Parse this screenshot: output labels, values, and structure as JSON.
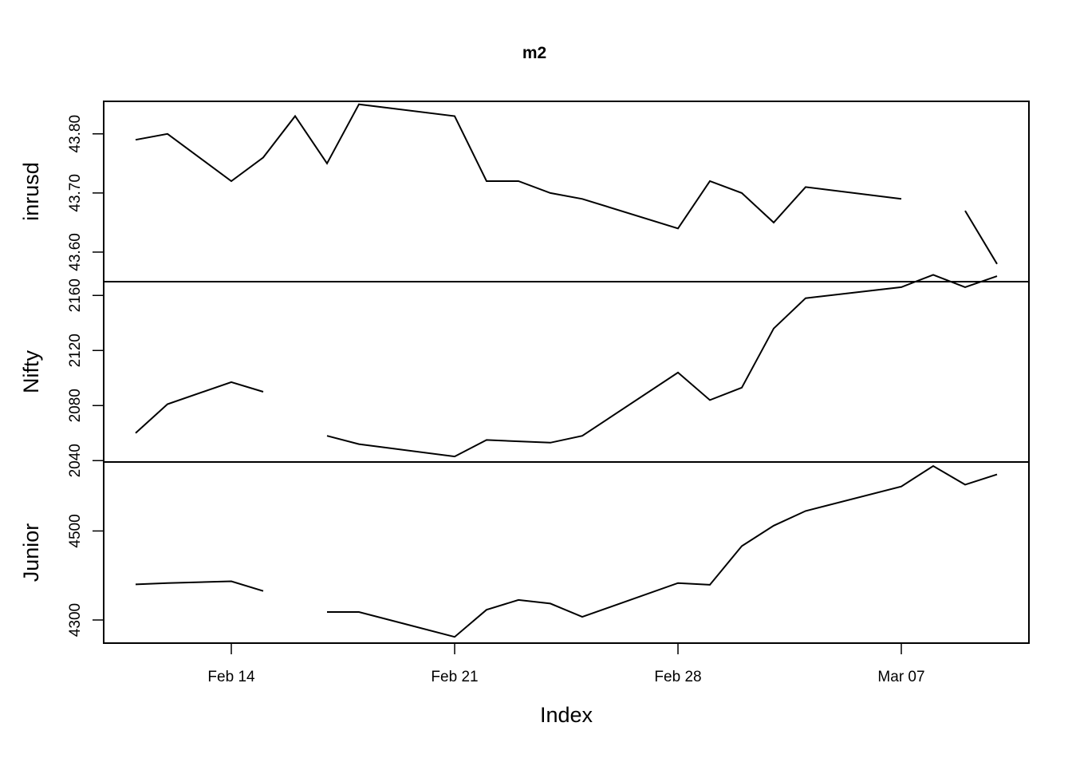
{
  "chart_data": {
    "type": "line",
    "title": "m2",
    "xlabel": "Index",
    "x_axis_kind": "date",
    "x_range": [
      "2005-02-10",
      "2005-03-11"
    ],
    "x_ticks": [
      {
        "date": "2005-02-14",
        "label": "Feb 14"
      },
      {
        "date": "2005-02-21",
        "label": "Feb 21"
      },
      {
        "date": "2005-02-28",
        "label": "Feb 28"
      },
      {
        "date": "2005-03-07",
        "label": "Mar 07"
      }
    ],
    "x": [
      "2005-02-11",
      "2005-02-12",
      "2005-02-14",
      "2005-02-15",
      "2005-02-16",
      "2005-02-17",
      "2005-02-18",
      "2005-02-21",
      "2005-02-22",
      "2005-02-23",
      "2005-02-24",
      "2005-02-25",
      "2005-02-28",
      "2005-03-01",
      "2005-03-02",
      "2005-03-03",
      "2005-03-04",
      "2005-03-07",
      "2005-03-08",
      "2005-03-09",
      "2005-03-10"
    ],
    "series": [
      {
        "name": "inrusd",
        "ylim": [
          43.55,
          43.855
        ],
        "y_ticks": [
          43.6,
          43.7,
          43.8
        ],
        "y_tick_labels": [
          "43.60",
          "43.70",
          "43.80"
        ],
        "values": [
          43.79,
          43.8,
          43.72,
          43.76,
          43.83,
          43.75,
          43.85,
          43.83,
          43.72,
          43.72,
          43.7,
          43.69,
          43.64,
          43.72,
          43.7,
          43.65,
          43.71,
          43.69,
          null,
          43.67,
          43.58
        ]
      },
      {
        "name": "Nifty",
        "ylim": [
          2039,
          2170
        ],
        "y_ticks": [
          2040,
          2080,
          2120,
          2160
        ],
        "y_tick_labels": [
          "2040",
          "2080",
          "2120",
          "2160"
        ],
        "values": [
          2060,
          2081,
          2097,
          2090,
          null,
          2058,
          2052,
          2043,
          2055,
          2054,
          2053,
          2058,
          2104,
          2084,
          2093,
          2136,
          2158,
          2166,
          2175,
          2166,
          2174
        ]
      },
      {
        "name": "Junior",
        "ylim": [
          4248,
          4655
        ],
        "y_ticks": [
          4300,
          4500
        ],
        "y_tick_labels": [
          "4300",
          "4500"
        ],
        "values": [
          4380,
          4383,
          4387,
          4365,
          null,
          4318,
          4318,
          4262,
          4323,
          4345,
          4337,
          4307,
          4383,
          4379,
          4466,
          4512,
          4545,
          4600,
          4646,
          4604,
          4627
        ]
      }
    ],
    "grid": false,
    "legend": "none"
  }
}
